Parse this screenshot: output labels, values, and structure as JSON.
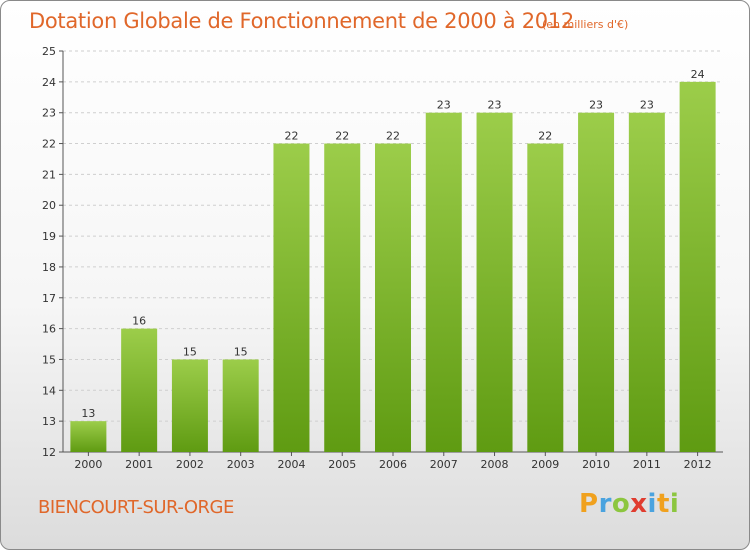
{
  "chart_data": {
    "type": "bar",
    "title": "Dotation Globale de Fonctionnement de 2000 à 2012",
    "subtitle": "(en milliers d'€)",
    "categories": [
      "2000",
      "2001",
      "2002",
      "2003",
      "2004",
      "2005",
      "2006",
      "2007",
      "2008",
      "2009",
      "2010",
      "2011",
      "2012"
    ],
    "values": [
      13,
      16,
      15,
      15,
      22,
      22,
      22,
      23,
      23,
      22,
      23,
      23,
      24
    ],
    "data_labels": [
      "13",
      "16",
      "15",
      "15",
      "22",
      "22",
      "22",
      "23",
      "23",
      "22",
      "23",
      "23",
      "24"
    ],
    "y_ticks": [
      12,
      13,
      14,
      15,
      16,
      17,
      18,
      19,
      20,
      21,
      22,
      23,
      24,
      25
    ],
    "ylim": [
      12,
      25
    ],
    "grid": true,
    "bar_color_top": "#9ccd4a",
    "bar_color_bottom": "#5f9b12"
  },
  "footer": {
    "commune": "BIENCOURT-SUR-ORGE",
    "logo_letters": [
      "P",
      "r",
      "o",
      "x",
      "i",
      "t",
      "i"
    ],
    "logo_colors": [
      "#f0a11e",
      "#4aa3df",
      "#8cc63f",
      "#e03c2f",
      "#4aa3df",
      "#f0a11e",
      "#8cc63f"
    ]
  }
}
